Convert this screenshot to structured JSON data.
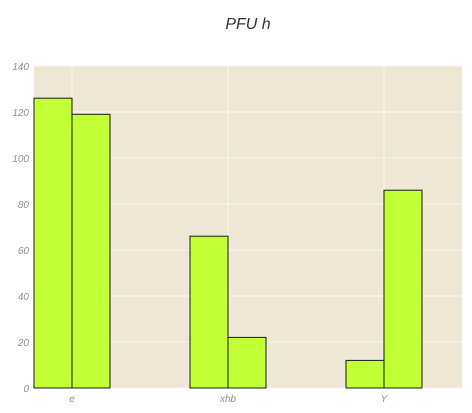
{
  "chart_data": {
    "type": "bar",
    "title": "PFU h",
    "xlabel": "",
    "ylabel": "",
    "categories": [
      "e",
      "xhb",
      "Y"
    ],
    "series": [
      {
        "values": [
          126,
          66,
          12
        ]
      },
      {
        "values": [
          119,
          22,
          86
        ]
      }
    ],
    "ylim": [
      0,
      140
    ],
    "yticks": [
      0,
      20,
      40,
      60,
      80,
      100,
      120,
      140
    ],
    "grid": true,
    "legend": "none",
    "colors": {
      "plot_background": "#efe7d5",
      "grid": "#fbf7ee",
      "bar_fill": "#c2ff35",
      "bar_edge": "#1a1a1a",
      "tick_text": "#8a8f99"
    }
  }
}
